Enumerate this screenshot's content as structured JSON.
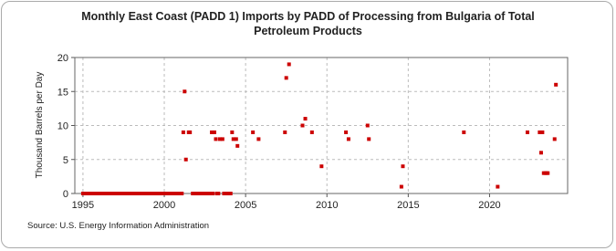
{
  "chart_data": {
    "type": "scatter",
    "title": "Monthly East Coast (PADD 1) Imports by PADD of Processing from Bulgaria of Total Petroleum Products",
    "y_label": "Thousand Barrels per Day",
    "source": "Source: U.S. Energy Information Administration",
    "color": "#cc0000",
    "grid": true,
    "xlim": [
      1994.5,
      2024.8
    ],
    "xticks": [
      1995,
      2000,
      2005,
      2010,
      2015,
      2020
    ],
    "ylim": [
      0,
      20
    ],
    "yticks": [
      0,
      5,
      10,
      15,
      20
    ],
    "x": [
      1995.0,
      1995.08,
      1995.17,
      1995.25,
      1995.33,
      1995.42,
      1995.5,
      1995.58,
      1995.67,
      1995.75,
      1995.83,
      1995.92,
      1996.0,
      1996.08,
      1996.17,
      1996.25,
      1996.33,
      1996.42,
      1996.5,
      1996.58,
      1996.67,
      1996.75,
      1996.83,
      1996.92,
      1997.0,
      1997.08,
      1997.17,
      1997.25,
      1997.33,
      1997.42,
      1997.5,
      1997.58,
      1997.67,
      1997.75,
      1997.83,
      1997.92,
      1998.0,
      1998.08,
      1998.17,
      1998.25,
      1998.33,
      1998.42,
      1998.5,
      1998.58,
      1998.67,
      1998.75,
      1998.83,
      1998.92,
      1999.0,
      1999.08,
      1999.17,
      1999.25,
      1999.33,
      1999.42,
      1999.5,
      1999.58,
      1999.67,
      1999.75,
      1999.83,
      1999.92,
      2000.0,
      2000.08,
      2000.17,
      2000.25,
      2000.33,
      2000.42,
      2000.5,
      2000.58,
      2000.67,
      2000.75,
      2000.83,
      2000.92,
      2001.0,
      2001.08,
      2001.17,
      2001.25,
      2001.33,
      2001.5,
      2001.58,
      2001.75,
      2001.83,
      2001.92,
      2002.0,
      2002.08,
      2002.17,
      2002.25,
      2002.33,
      2002.42,
      2002.5,
      2002.58,
      2002.67,
      2002.75,
      2002.83,
      2002.92,
      2003.0,
      2003.08,
      2003.17,
      2003.25,
      2003.33,
      2003.42,
      2003.58,
      2003.67,
      2003.75,
      2003.83,
      2003.92,
      2004.0,
      2004.08,
      2004.17,
      2004.25,
      2004.42,
      2004.5,
      2005.45,
      2005.8,
      2007.42,
      2007.5,
      2007.67,
      2008.5,
      2008.67,
      2009.08,
      2009.67,
      2011.17,
      2011.33,
      2012.5,
      2012.58,
      2014.58,
      2014.67,
      2018.42,
      2020.5,
      2022.33,
      2023.08,
      2023.17,
      2023.25,
      2023.33,
      2023.42,
      2023.5,
      2023.58,
      2024.0,
      2024.08
    ],
    "values": [
      0,
      0,
      0,
      0,
      0,
      0,
      0,
      0,
      0,
      0,
      0,
      0,
      0,
      0,
      0,
      0,
      0,
      0,
      0,
      0,
      0,
      0,
      0,
      0,
      0,
      0,
      0,
      0,
      0,
      0,
      0,
      0,
      0,
      0,
      0,
      0,
      0,
      0,
      0,
      0,
      0,
      0,
      0,
      0,
      0,
      0,
      0,
      0,
      0,
      0,
      0,
      0,
      0,
      0,
      0,
      0,
      0,
      0,
      0,
      0,
      0,
      0,
      0,
      0,
      0,
      0,
      0,
      0,
      0,
      0,
      0,
      0,
      0,
      0,
      9,
      15,
      5,
      9,
      9,
      0,
      0,
      0,
      0,
      0,
      0,
      0,
      0,
      0,
      0,
      0,
      0,
      0,
      0,
      9,
      0,
      9,
      8,
      0,
      0,
      8,
      8,
      0,
      0,
      0,
      0,
      0,
      0,
      9,
      8,
      8,
      7,
      9,
      8,
      9,
      17,
      19,
      10,
      11,
      9,
      4,
      9,
      8,
      10,
      8,
      1,
      4,
      9,
      1,
      9,
      9,
      6,
      9,
      3,
      3,
      3,
      3,
      8,
      16
    ]
  }
}
